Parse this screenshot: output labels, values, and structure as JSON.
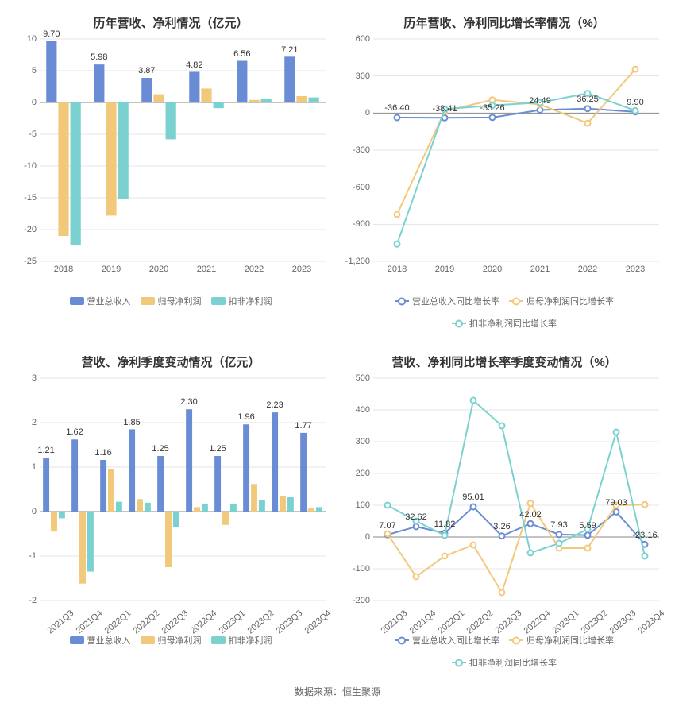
{
  "font_family": "Microsoft YaHei",
  "colors": {
    "blue": "#6a8cd4",
    "orange": "#f2c87b",
    "teal": "#7ad1cf",
    "grid": "#e5e5e5",
    "axis": "#888888",
    "text": "#333333",
    "subtext": "#666666",
    "bg": "#ffffff"
  },
  "source_label": "数据来源：恒生聚源",
  "charts": [
    {
      "id": "annual-bar",
      "type": "bar",
      "title": "历年营收、净利情况（亿元）",
      "categories": [
        "2018",
        "2019",
        "2020",
        "2021",
        "2022",
        "2023"
      ],
      "ylim": [
        -25,
        10
      ],
      "ytick_step": 5,
      "bar_width": 0.22,
      "series": [
        {
          "name": "营业总收入",
          "color": "#6a8cd4",
          "values": [
            9.7,
            5.98,
            3.87,
            4.82,
            6.56,
            7.21
          ],
          "show_labels": true
        },
        {
          "name": "归母净利润",
          "color": "#f2c87b",
          "values": [
            -21.0,
            -17.8,
            1.3,
            2.2,
            0.4,
            1.0
          ],
          "show_labels": false
        },
        {
          "name": "扣非净利润",
          "color": "#7ad1cf",
          "values": [
            -22.5,
            -15.2,
            -5.8,
            -0.9,
            0.6,
            0.8
          ],
          "show_labels": false
        }
      ],
      "legend": [
        "营业总收入",
        "归母净利润",
        "扣非净利润"
      ],
      "legend_style": "rect"
    },
    {
      "id": "annual-growth",
      "type": "line",
      "title": "历年营收、净利同比增长率情况（%）",
      "categories": [
        "2018",
        "2019",
        "2020",
        "2021",
        "2022",
        "2023"
      ],
      "ylim": [
        -1200,
        600
      ],
      "ytick_step": 300,
      "series": [
        {
          "name": "营业总收入同比增长率",
          "color": "#6a8cd4",
          "values": [
            -36.4,
            -38.41,
            -35.26,
            24.49,
            36.25,
            9.9
          ],
          "show_labels": true
        },
        {
          "name": "归母净利润同比增长率",
          "color": "#f2c87b",
          "values": [
            -820,
            15,
            107,
            70,
            -82,
            355
          ],
          "show_labels": false
        },
        {
          "name": "扣非净利润同比增长率",
          "color": "#7ad1cf",
          "values": [
            -1060,
            32,
            62,
            85,
            160,
            20
          ],
          "show_labels": false
        }
      ],
      "legend": [
        "营业总收入同比增长率",
        "归母净利润同比增长率",
        "扣非净利润同比增长率"
      ],
      "legend_style": "line"
    },
    {
      "id": "quarterly-bar",
      "type": "bar",
      "title": "营收、净利季度变动情况（亿元）",
      "categories": [
        "2021Q3",
        "2021Q4",
        "2022Q1",
        "2022Q2",
        "2022Q3",
        "2022Q4",
        "2023Q1",
        "2023Q2",
        "2023Q3",
        "2023Q4"
      ],
      "x_rotate": true,
      "ylim": [
        -2,
        3
      ],
      "ytick_step": 1,
      "bar_width": 0.22,
      "series": [
        {
          "name": "营业总收入",
          "color": "#6a8cd4",
          "values": [
            1.21,
            1.62,
            1.16,
            1.85,
            1.25,
            2.3,
            1.25,
            1.96,
            2.23,
            1.77
          ],
          "show_labels": true
        },
        {
          "name": "归母净利润",
          "color": "#f2c87b",
          "values": [
            -0.45,
            -1.62,
            0.95,
            0.28,
            -1.25,
            0.1,
            -0.3,
            0.62,
            0.35,
            0.07
          ],
          "show_labels": false
        },
        {
          "name": "扣非净利润",
          "color": "#7ad1cf",
          "values": [
            -0.15,
            -1.35,
            0.22,
            0.2,
            -0.35,
            0.18,
            0.18,
            0.25,
            0.32,
            0.1
          ],
          "show_labels": false
        }
      ],
      "legend": [
        "营业总收入",
        "归母净利润",
        "扣非净利润"
      ],
      "legend_style": "rect"
    },
    {
      "id": "quarterly-growth",
      "type": "line",
      "title": "营收、净利同比增长率季度变动情况（%）",
      "categories": [
        "2021Q3",
        "2021Q4",
        "2022Q1",
        "2022Q2",
        "2022Q3",
        "2022Q4",
        "2023Q1",
        "2023Q2",
        "2023Q3",
        "2023Q4"
      ],
      "x_rotate": true,
      "ylim": [
        -200,
        500
      ],
      "ytick_step": 100,
      "series": [
        {
          "name": "营业总收入同比增长率",
          "color": "#6a8cd4",
          "values": [
            7.07,
            32.62,
            11.82,
            95.01,
            3.26,
            42.02,
            7.93,
            5.59,
            79.03,
            -23.16
          ],
          "show_labels": true
        },
        {
          "name": "归母净利润同比增长率",
          "color": "#f2c87b",
          "values": [
            10,
            -125,
            -60,
            -25,
            -175,
            106,
            -35,
            -35,
            100,
            102
          ],
          "show_labels": false
        },
        {
          "name": "扣非净利润同比增长率",
          "color": "#7ad1cf",
          "values": [
            100,
            50,
            5,
            430,
            350,
            -50,
            -20,
            25,
            330,
            -60
          ],
          "show_labels": false
        }
      ],
      "legend": [
        "营业总收入同比增长率",
        "归母净利润同比增长率",
        "扣非净利润同比增长率"
      ],
      "legend_style": "line"
    }
  ]
}
